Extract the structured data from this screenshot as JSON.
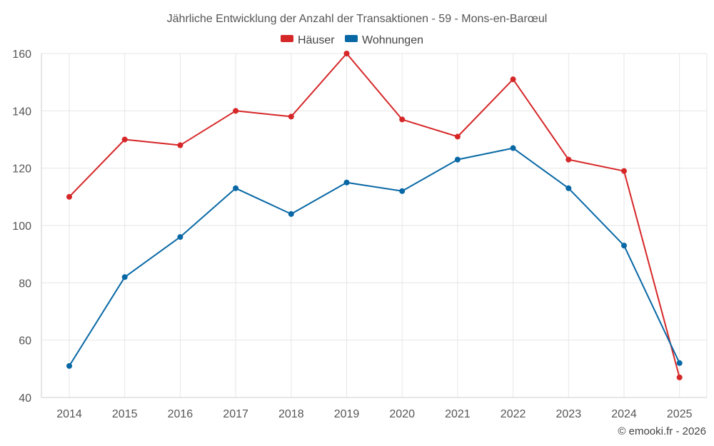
{
  "chart_data": {
    "type": "line",
    "title": "Jährliche Entwicklung der Anzahl der Transaktionen - 59 - Mons-en-Barœul",
    "categories": [
      "2014",
      "2015",
      "2016",
      "2017",
      "2018",
      "2019",
      "2020",
      "2021",
      "2022",
      "2023",
      "2024",
      "2025"
    ],
    "series": [
      {
        "name": "Häuser",
        "color": "#d62728",
        "values": [
          110,
          130,
          128,
          140,
          138,
          160,
          137,
          131,
          151,
          123,
          119,
          47
        ]
      },
      {
        "name": "Wohnungen",
        "color": "#0868a5",
        "values": [
          51,
          82,
          96,
          113,
          104,
          115,
          112,
          123,
          127,
          113,
          93,
          52
        ]
      }
    ],
    "ylim": [
      40,
      160
    ],
    "yticks": [
      "40",
      "60",
      "80",
      "100",
      "120",
      "140",
      "160"
    ],
    "xlabel": "",
    "ylabel": "",
    "grid": true,
    "legend": "top-center"
  },
  "copyright": "© emooki.fr - 2026"
}
